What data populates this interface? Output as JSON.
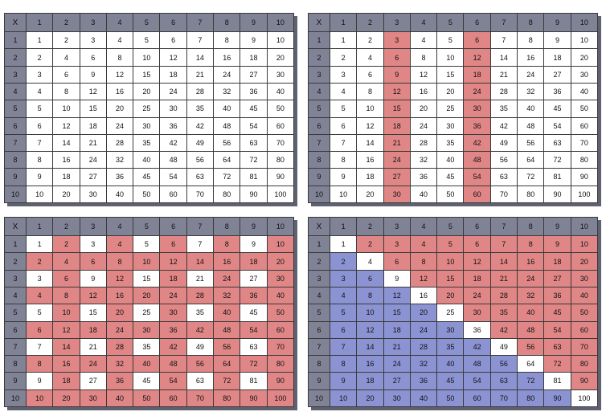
{
  "corner_label": "X",
  "size": 10,
  "tables": [
    {
      "name": "times-table-plain",
      "mode": "plain"
    },
    {
      "name": "times-table-columns-3-6-highlighted",
      "mode": "columns",
      "columns": [
        3,
        6
      ]
    },
    {
      "name": "times-table-even-products-highlighted",
      "mode": "even"
    },
    {
      "name": "times-table-diagonal-split",
      "mode": "diagonal"
    }
  ],
  "colors": {
    "header": "#808396",
    "highlight_red": "#e08686",
    "highlight_blue": "#8c93d2",
    "plain": "#ffffff",
    "border": "#3a3a3a"
  }
}
